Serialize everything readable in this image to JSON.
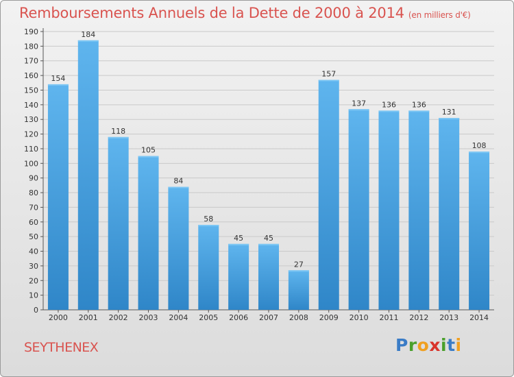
{
  "title": "Remboursements Annuels de la Dette de 2000 à 2014",
  "subtitle": "(en milliers d'€)",
  "commune": "SEYTHENEX",
  "logo": {
    "text": "Proxiti",
    "letter_colors": [
      "#3a7cc6",
      "#4aa02c",
      "#f0a020",
      "#d9342b",
      "#4aa02c",
      "#3a7cc6",
      "#f0a020"
    ]
  },
  "chart_data": {
    "type": "bar",
    "categories": [
      "2000",
      "2001",
      "2002",
      "2003",
      "2004",
      "2005",
      "2006",
      "2007",
      "2008",
      "2009",
      "2010",
      "2011",
      "2012",
      "2013",
      "2014"
    ],
    "values": [
      154,
      184,
      118,
      105,
      84,
      58,
      45,
      45,
      27,
      157,
      137,
      136,
      136,
      131,
      108
    ],
    "ylim": [
      0,
      190
    ],
    "ytick_step": 10,
    "grid": true,
    "bar_color": "#3f97d9",
    "bar_color_top": "#5cb3ec"
  }
}
